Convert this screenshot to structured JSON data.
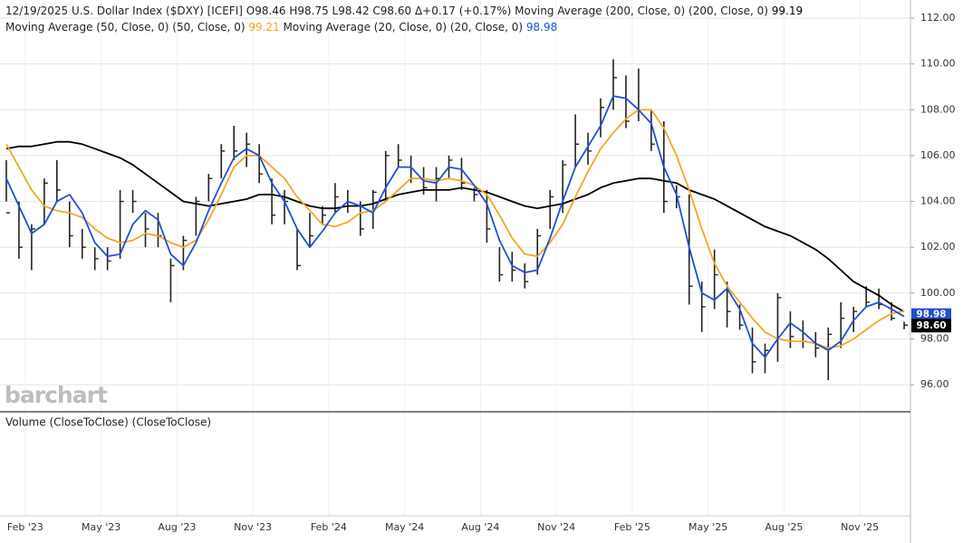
{
  "chart_data": {
    "type": "ohlc",
    "header": "12/19/2025 U.S. Dollar Index ($DXY) [ICEFI] O98.46 H98.75 L98.42 C98.60 Δ+0.17 (+0.17%)",
    "watermark": "barchart",
    "volume_title": "Volume (CloseToClose)  (CloseToClose)",
    "last_close_label": "98.60",
    "bar_color": "#222222",
    "ylim": [
      94.82,
      112.79
    ],
    "yticks": [
      {
        "value": 96,
        "label": "96.00"
      },
      {
        "value": 98,
        "label": "98.00"
      },
      {
        "value": 100,
        "label": "100.00"
      },
      {
        "value": 102,
        "label": "102.00"
      },
      {
        "value": 104,
        "label": "104.00"
      },
      {
        "value": 106,
        "label": "106.00"
      },
      {
        "value": 108,
        "label": "108.00"
      },
      {
        "value": 110,
        "label": "110.00"
      },
      {
        "value": 112,
        "label": "112.00"
      }
    ],
    "grid": true,
    "categories": [
      null,
      null,
      "Feb '23",
      null,
      null,
      null,
      null,
      null,
      "May '23",
      null,
      null,
      null,
      null,
      null,
      "Aug '23",
      null,
      null,
      null,
      null,
      null,
      "Nov '23",
      null,
      null,
      null,
      null,
      null,
      "Feb '24",
      null,
      null,
      null,
      null,
      null,
      "May '24",
      null,
      null,
      null,
      null,
      null,
      "Aug '24",
      null,
      null,
      null,
      null,
      null,
      "Nov '24",
      null,
      null,
      null,
      null,
      null,
      "Feb '25",
      null,
      null,
      null,
      null,
      null,
      "May '25",
      null,
      null,
      null,
      null,
      null,
      "Aug '25",
      null,
      null,
      null,
      null,
      null,
      "Nov '25",
      null,
      null,
      null
    ],
    "high": [
      105.8,
      104,
      103,
      105,
      105.8,
      104,
      102.8,
      102,
      102,
      104.5,
      104.5,
      103.5,
      103.5,
      101.5,
      102.5,
      104.2,
      105.2,
      106.5,
      107.3,
      107,
      106.5,
      105,
      104.5,
      102.8,
      103.5,
      103.8,
      104.8,
      104.5,
      104,
      104.5,
      106.2,
      106.5,
      106,
      105.5,
      105.5,
      106,
      105.9,
      104.6,
      104.5,
      102,
      101.8,
      101.3,
      102.8,
      104.5,
      105.8,
      107.8,
      107,
      108.5,
      110.2,
      109.5,
      109.8,
      108,
      107.5,
      104.7,
      104.3,
      100.5,
      101.9,
      100.5,
      99.5,
      98.5,
      97.8,
      100,
      99.2,
      98.8,
      98.3,
      98.5,
      99.6,
      99.4,
      100.3,
      100.2,
      99.6,
      98.75
    ],
    "low": [
      104,
      101.5,
      101,
      103,
      104,
      102,
      101.5,
      101,
      101,
      101.5,
      103.5,
      102,
      102,
      99.6,
      101,
      102.5,
      104,
      105,
      105.8,
      105.5,
      104.8,
      103,
      103,
      101,
      102,
      103,
      103.5,
      103.5,
      102.5,
      102.8,
      104,
      105.5,
      104.8,
      104.3,
      104,
      105,
      104.5,
      104,
      102.2,
      100.5,
      100.5,
      100.2,
      100.8,
      102.8,
      103.5,
      105.5,
      105.6,
      106.8,
      108,
      107.2,
      107.5,
      106.2,
      103.5,
      103.7,
      99.5,
      98.3,
      99.3,
      98.5,
      98.4,
      96.5,
      96.5,
      97,
      97.6,
      97.6,
      97.2,
      96.2,
      97.6,
      98.3,
      99.4,
      99.3,
      98.8,
      98.42
    ],
    "close": [
      103.5,
      102,
      102.8,
      104.8,
      104.5,
      102.5,
      102,
      101.5,
      101.4,
      104,
      104,
      102.8,
      102.5,
      101.2,
      102.3,
      104,
      105,
      106.2,
      106.2,
      106.5,
      105.2,
      103.4,
      104,
      101.2,
      102.5,
      103.4,
      104.2,
      103.8,
      102.8,
      104.4,
      106,
      105.8,
      105,
      104.6,
      105,
      105.8,
      104.8,
      104.3,
      102.8,
      100.8,
      101,
      100.5,
      102.5,
      104.2,
      105.6,
      106.5,
      106.2,
      108.1,
      109.4,
      107.5,
      108,
      106.5,
      104,
      104.2,
      100.3,
      99.4,
      100.8,
      99.2,
      98.6,
      97,
      97.5,
      99.8,
      98.1,
      97.9,
      97.6,
      98.2,
      98.9,
      99.2,
      99.6,
      99.5,
      98.9,
      98.6
    ],
    "series": [
      {
        "name": "Moving Average (200, Close, 0) (200, Close, 0)",
        "color": "#000000",
        "values": [
          106.3,
          106.4,
          106.4,
          106.5,
          106.6,
          106.6,
          106.5,
          106.3,
          106.1,
          105.9,
          105.6,
          105.2,
          104.8,
          104.4,
          104.0,
          103.9,
          103.8,
          103.9,
          104.0,
          104.1,
          104.3,
          104.3,
          104.2,
          104.0,
          103.8,
          103.7,
          103.7,
          103.8,
          103.8,
          103.9,
          104.1,
          104.3,
          104.4,
          104.5,
          104.5,
          104.5,
          104.6,
          104.5,
          104.4,
          104.2,
          104.0,
          103.8,
          103.7,
          103.8,
          103.9,
          104.1,
          104.3,
          104.6,
          104.8,
          104.9,
          105.0,
          105.0,
          104.9,
          104.8,
          104.5,
          104.3,
          104.1,
          103.8,
          103.5,
          103.2,
          102.9,
          102.7,
          102.5,
          102.2,
          101.9,
          101.5,
          101.0,
          100.5,
          100.2,
          99.9,
          99.5,
          99.19
        ]
      },
      {
        "name": "Moving Average (50, Close, 0) (50, Close, 0)",
        "color": "#f5a623",
        "values": [
          106.5,
          105.5,
          104.5,
          103.8,
          103.6,
          103.5,
          103.3,
          102.8,
          102.4,
          102.2,
          102.3,
          102.6,
          102.5,
          102.2,
          102.0,
          102.3,
          103.2,
          104.3,
          105.5,
          106.0,
          106.0,
          105.5,
          105.0,
          104.2,
          103.6,
          103.0,
          102.9,
          103.1,
          103.5,
          103.6,
          104.0,
          104.5,
          105.0,
          105.0,
          104.9,
          105.0,
          104.9,
          104.7,
          104.3,
          103.4,
          102.4,
          101.7,
          101.6,
          102.2,
          103.0,
          104.2,
          105.3,
          106.3,
          107.0,
          107.6,
          108.0,
          108.0,
          107.2,
          106.0,
          104.5,
          102.8,
          101.3,
          100.3,
          99.6,
          98.9,
          98.3,
          98.0,
          97.9,
          97.9,
          97.8,
          97.6,
          97.7,
          98.0,
          98.4,
          98.8,
          99.1,
          99.21
        ]
      },
      {
        "name": "Moving Average (20, Close, 0) (20, Close, 0)",
        "color": "#1f4fd8",
        "values": [
          105.0,
          103.8,
          102.6,
          103.0,
          104.0,
          104.3,
          103.5,
          102.2,
          101.6,
          101.7,
          103.0,
          103.6,
          103.2,
          101.7,
          101.2,
          102.2,
          103.6,
          104.8,
          105.9,
          106.3,
          106.0,
          104.8,
          104.0,
          102.8,
          102.0,
          102.7,
          103.5,
          104.0,
          103.8,
          103.5,
          104.6,
          105.5,
          105.5,
          104.9,
          104.8,
          105.5,
          105.4,
          104.7,
          103.9,
          102.3,
          101.2,
          100.9,
          101.0,
          102.4,
          104.0,
          105.5,
          106.4,
          107.3,
          108.6,
          108.5,
          108.0,
          107.4,
          105.5,
          104.3,
          102.0,
          100.0,
          99.7,
          100.2,
          99.3,
          97.8,
          97.2,
          98.0,
          98.7,
          98.3,
          97.8,
          97.5,
          97.9,
          98.8,
          99.4,
          99.6,
          99.3,
          98.98
        ]
      }
    ]
  }
}
